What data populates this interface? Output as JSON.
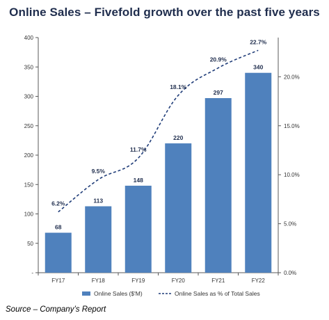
{
  "title": "Online Sales – Fivefold growth over the past five years",
  "source": "Source – Company’s Report",
  "colors": {
    "bar": "#4f81bd",
    "line": "#1f3c78",
    "axis": "#595959",
    "label": "#1f2d4d"
  },
  "chart_data": {
    "type": "bar",
    "categories": [
      "FY17",
      "FY18",
      "FY19",
      "FY20",
      "FY21",
      "FY22"
    ],
    "series": [
      {
        "name": "Online Sales ($'M)",
        "type": "bar",
        "axis": "left",
        "values": [
          68,
          113,
          148,
          220,
          297,
          340
        ],
        "labels": [
          "68",
          "113",
          "148",
          "220",
          "297",
          "340"
        ]
      },
      {
        "name": "Online Sales as % of Total Sales",
        "type": "line",
        "style": "dashed",
        "axis": "right",
        "values": [
          6.2,
          9.5,
          11.7,
          18.1,
          20.9,
          22.7
        ],
        "labels": [
          "6.2%",
          "9.5%",
          "11.7%",
          "18.1%",
          "20.9%",
          "22.7%"
        ]
      }
    ],
    "y_left": {
      "ylim": [
        0,
        400
      ],
      "ticks": [
        0,
        50,
        100,
        150,
        200,
        250,
        300,
        350,
        400
      ],
      "tick_labels": [
        "-",
        "50",
        "100",
        "150",
        "200",
        "250",
        "300",
        "350",
        "400"
      ]
    },
    "y_right": {
      "ylim": [
        0,
        24
      ],
      "ticks": [
        0,
        5,
        10,
        15,
        20
      ],
      "tick_labels": [
        "0.0%",
        "5.0%",
        "10.0%",
        "15.0%",
        "20.0%"
      ]
    },
    "grid": false,
    "legend_position": "bottom"
  }
}
